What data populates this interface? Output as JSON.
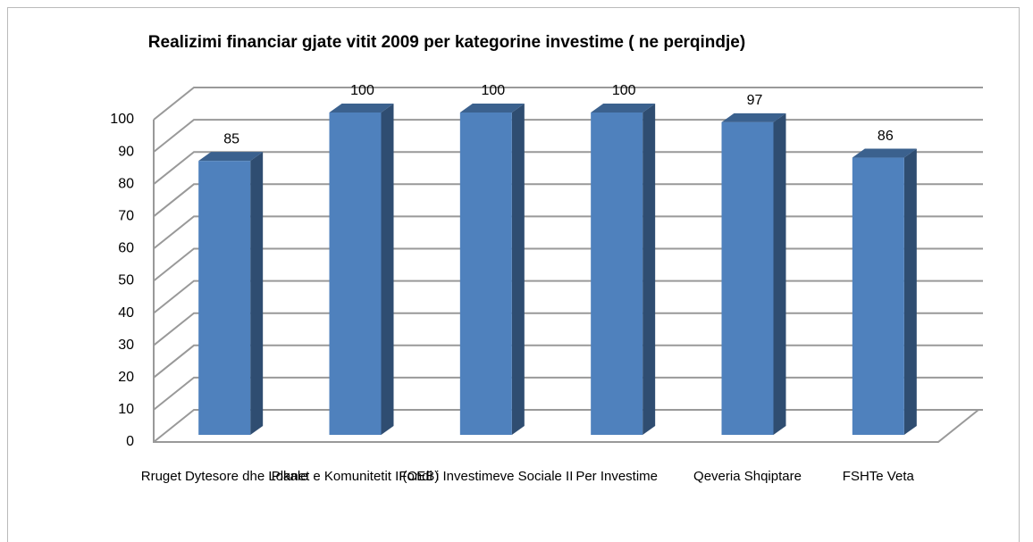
{
  "chart_data": {
    "type": "bar3d",
    "title": "Realizimi financiar gjate vitit 2009  per kategorine investime  ( ne perqindje)",
    "categories": [
      "Rruget Dytesore dhe Lokale",
      "Planet e Komunitetit II(CEB)",
      "Fondi i Investimeve Sociale II",
      "Per Investime",
      "Qeveria Shqiptare",
      "FSHTe Veta"
    ],
    "values": [
      85,
      100,
      100,
      100,
      97,
      86
    ],
    "color": "#4f81bd",
    "ylim": [
      0,
      100
    ],
    "yticks": [
      0,
      10,
      20,
      30,
      40,
      50,
      60,
      70,
      80,
      90,
      100
    ],
    "grid": true
  }
}
